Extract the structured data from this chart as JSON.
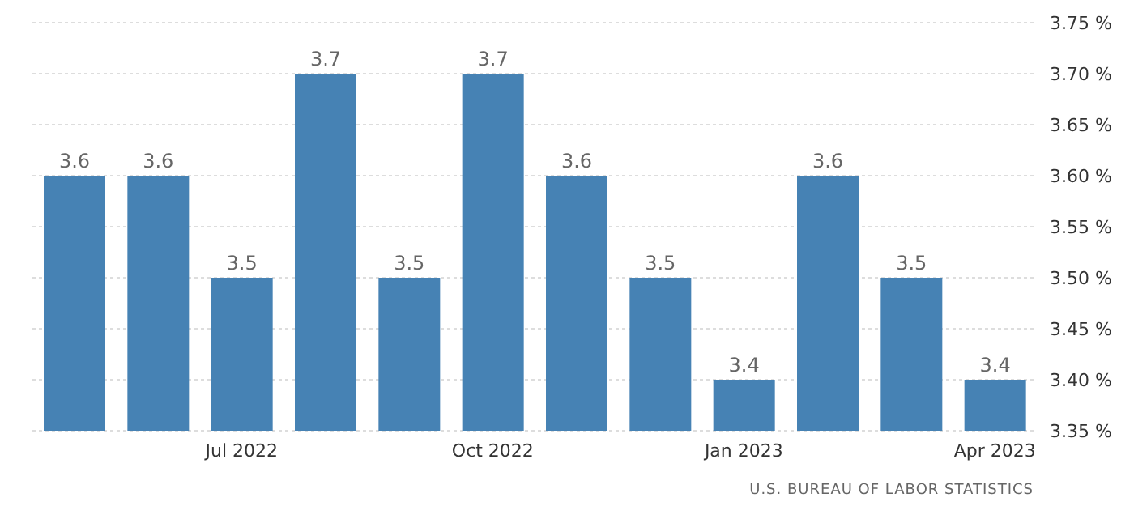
{
  "chart_data": {
    "type": "bar",
    "categories": [
      null,
      null,
      "Jul 2022",
      null,
      null,
      "Oct 2022",
      null,
      null,
      "Jan 2023",
      null,
      null,
      "Apr 2023"
    ],
    "values": [
      3.6,
      3.6,
      3.5,
      3.7,
      3.5,
      3.7,
      3.6,
      3.5,
      3.4,
      3.6,
      3.5,
      3.4
    ],
    "color": "#4682b4",
    "ylim": [
      3.35,
      3.75
    ],
    "yticks": [
      {
        "value": 3.35,
        "label": "3.35 %"
      },
      {
        "value": 3.4,
        "label": "3.40 %"
      },
      {
        "value": 3.45,
        "label": "3.45 %"
      },
      {
        "value": 3.5,
        "label": "3.50 %"
      },
      {
        "value": 3.55,
        "label": "3.55 %"
      },
      {
        "value": 3.6,
        "label": "3.60 %"
      },
      {
        "value": 3.65,
        "label": "3.65 %"
      },
      {
        "value": 3.7,
        "label": "3.70 %"
      },
      {
        "value": 3.75,
        "label": "3.75 %"
      }
    ],
    "grid": "y",
    "data_labels": true,
    "annotations": [
      "U.S. BUREAU OF LABOR STATISTICS"
    ]
  }
}
